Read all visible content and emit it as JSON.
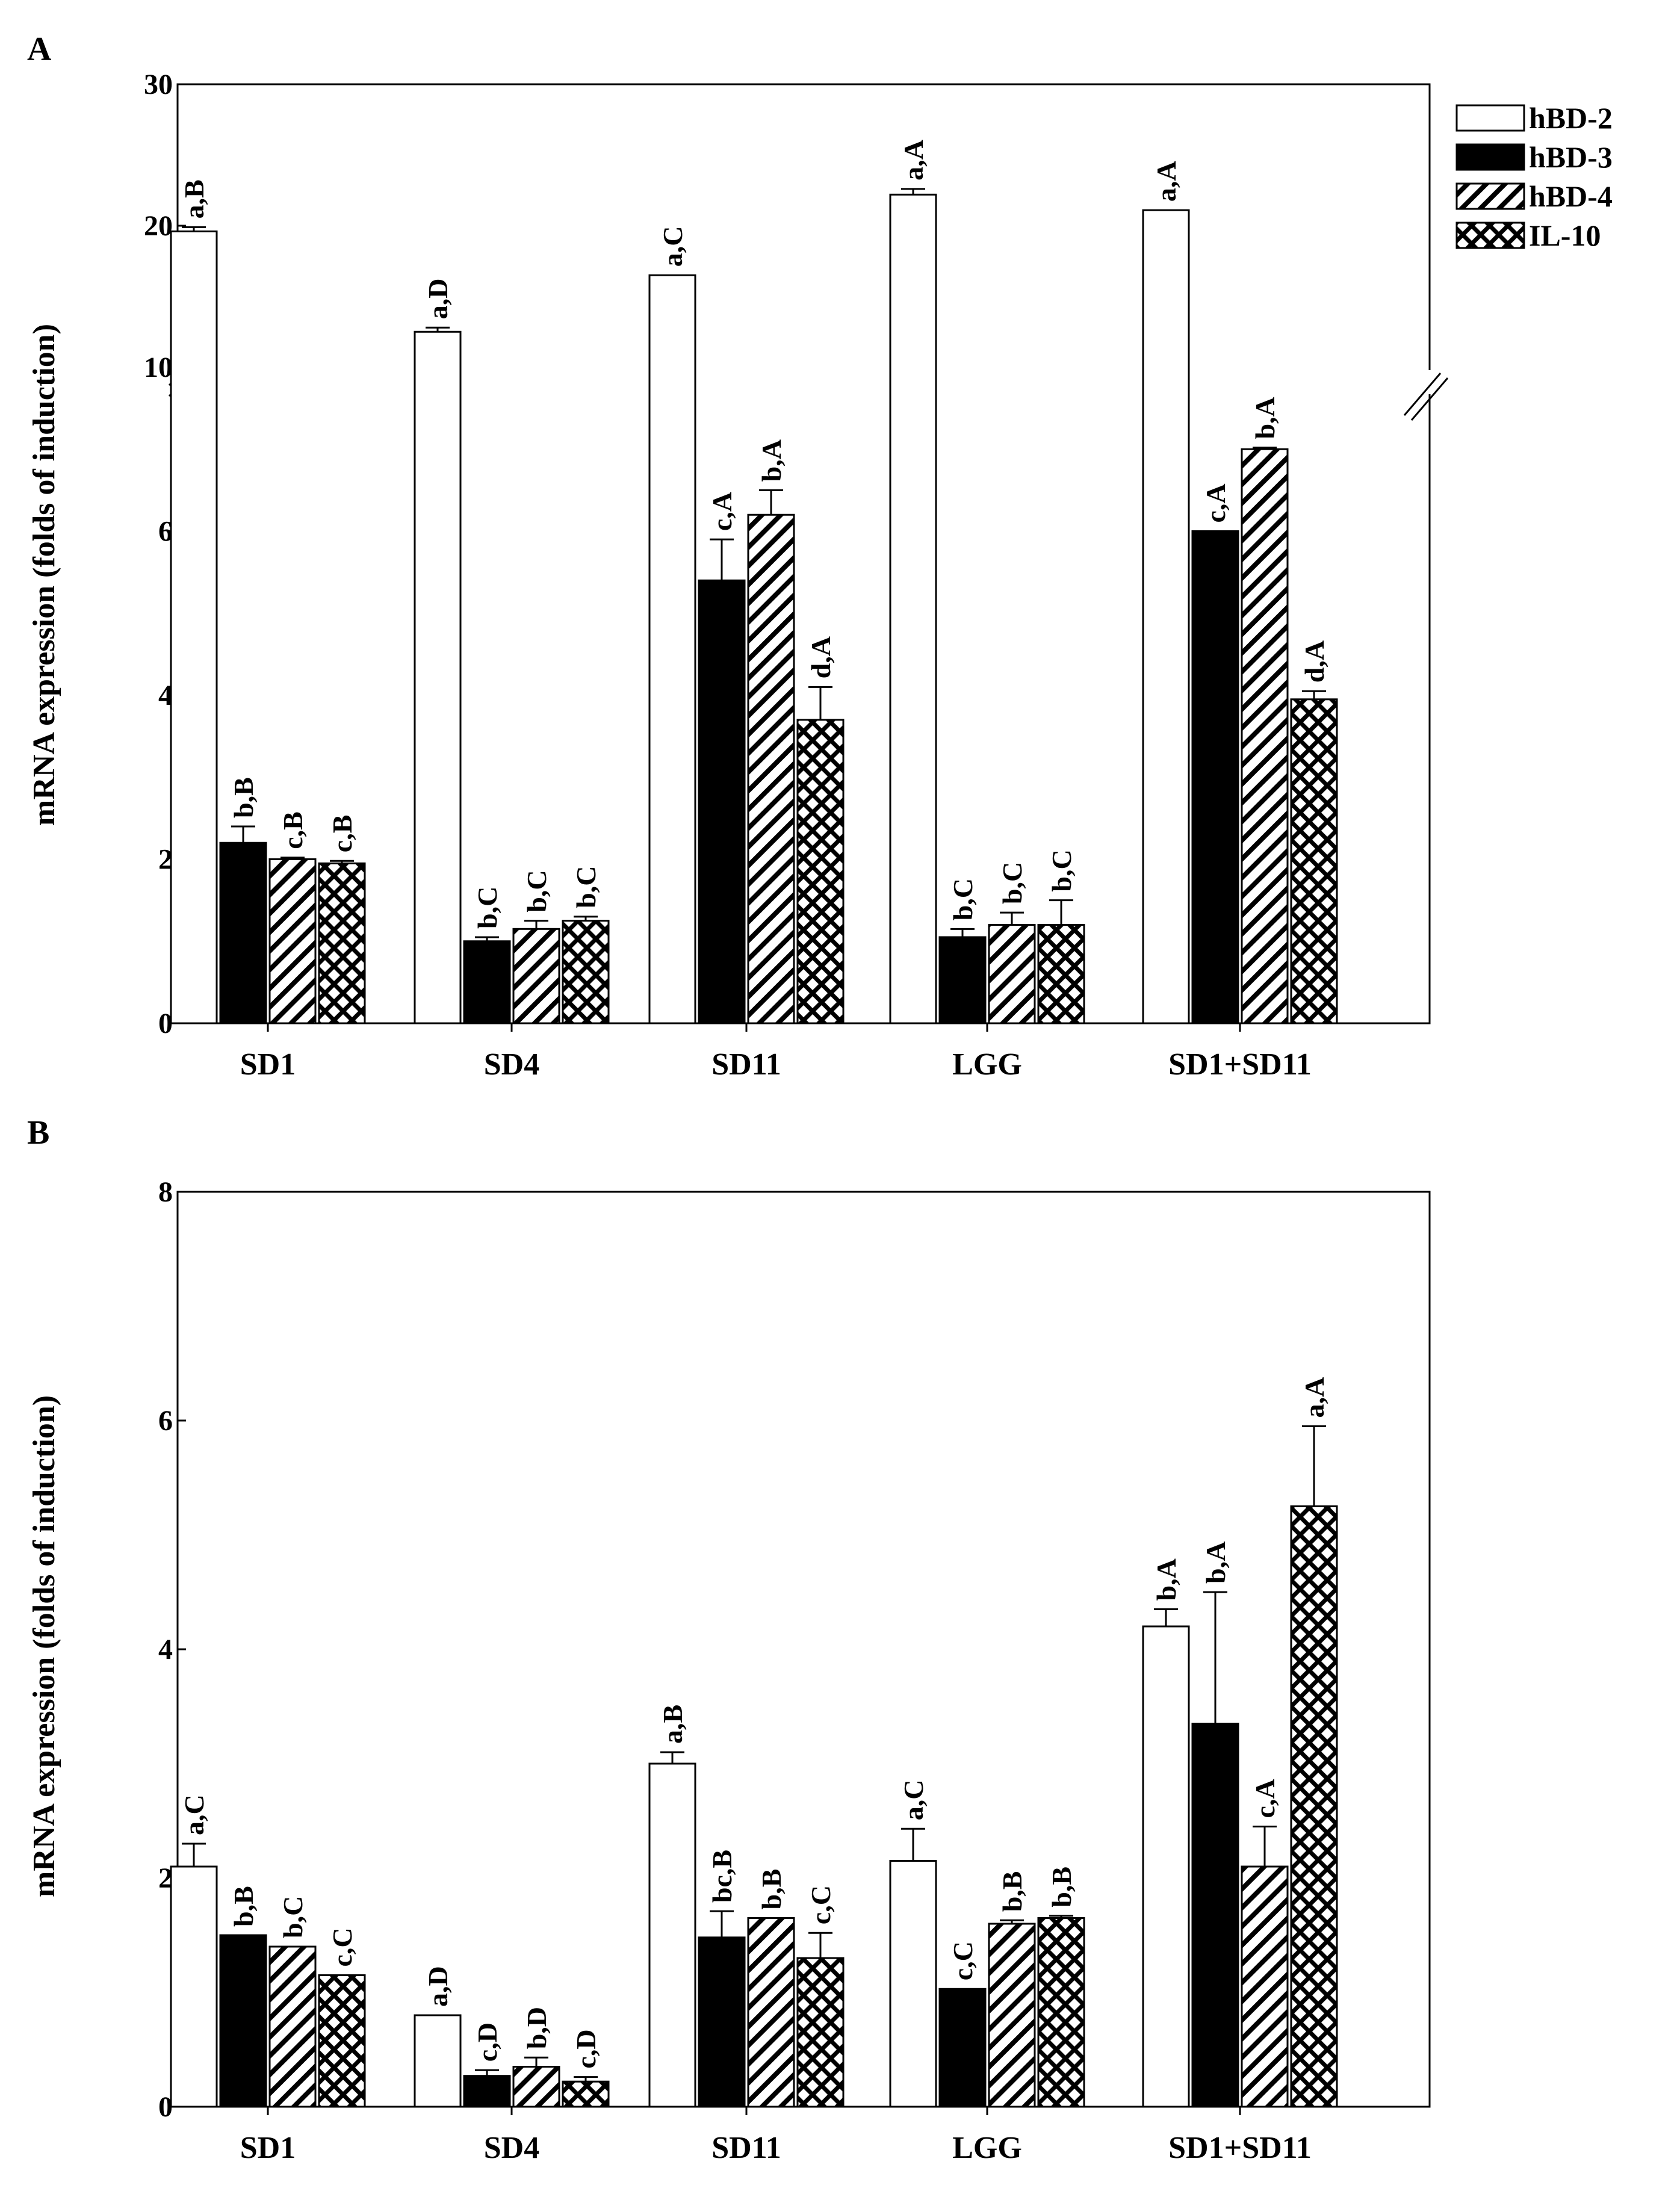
{
  "chart_data": [
    {
      "panel": "A",
      "type": "bar",
      "ylabel": "mRNA expression (folds of induction)",
      "categories": [
        "SD1",
        "SD4",
        "SD11",
        "LGG",
        "SD1+SD11"
      ],
      "y_ticks": [
        "0",
        "2",
        "4",
        "6",
        "10",
        "20",
        "30"
      ],
      "broken_axis": {
        "lower_range": [
          0,
          8
        ],
        "upper_range": [
          10,
          30
        ]
      },
      "legend_position": "top-right",
      "series": [
        {
          "name": "hBD-2",
          "values": [
            19.6,
            12.5,
            16.5,
            22.2,
            21.1
          ],
          "errors": [
            0.3,
            0.3,
            0,
            0.4,
            0
          ],
          "labels": [
            "a,B",
            "a,D",
            "a,C",
            "a,A",
            "a,A"
          ]
        },
        {
          "name": "hBD-3",
          "values": [
            2.2,
            1.0,
            5.4,
            1.05,
            6.0
          ],
          "errors": [
            0.2,
            0.05,
            0.5,
            0.1,
            0
          ],
          "labels": [
            "b,B",
            "b,C",
            "c,A",
            "b,C",
            "c,A"
          ]
        },
        {
          "name": "hBD-4",
          "values": [
            2.0,
            1.15,
            6.2,
            1.2,
            7.0
          ],
          "errors": [
            0.02,
            0.1,
            0.3,
            0.15,
            0.02
          ],
          "labels": [
            "c,B",
            "b,C",
            "b,A",
            "b,C",
            "b,A"
          ]
        },
        {
          "name": "IL-10",
          "values": [
            1.95,
            1.25,
            3.7,
            1.2,
            3.95
          ],
          "errors": [
            0.03,
            0.05,
            0.4,
            0.3,
            0.1
          ],
          "labels": [
            "c,B",
            "b,C",
            "d,A",
            "b,C",
            "d,A"
          ]
        }
      ]
    },
    {
      "panel": "B",
      "type": "bar",
      "ylabel": "mRNA expression (folds of induction)",
      "categories": [
        "SD1",
        "SD4",
        "SD11",
        "LGG",
        "SD1+SD11"
      ],
      "y_ticks": [
        "0",
        "2",
        "4",
        "6",
        "8"
      ],
      "ylim": [
        0,
        8
      ],
      "series": [
        {
          "name": "hBD-2",
          "values": [
            2.1,
            0.8,
            3.0,
            2.15,
            4.2
          ],
          "errors": [
            0.2,
            0,
            0.1,
            0.28,
            0.15
          ],
          "labels": [
            "a,C",
            "a,D",
            "a,B",
            "a,C",
            "b,A"
          ]
        },
        {
          "name": "hBD-3",
          "values": [
            1.5,
            0.27,
            1.48,
            1.03,
            3.35
          ],
          "errors": [
            0,
            0.05,
            0.23,
            0,
            1.15
          ],
          "labels": [
            "b,B",
            "c,D",
            "bc,B",
            "c,C",
            "b,A"
          ]
        },
        {
          "name": "hBD-4",
          "values": [
            1.4,
            0.35,
            1.65,
            1.6,
            2.1
          ],
          "errors": [
            0,
            0.08,
            0,
            0.03,
            0.35
          ],
          "labels": [
            "b,C",
            "b,D",
            "b,B",
            "b,B",
            "c,A"
          ]
        },
        {
          "name": "IL-10",
          "values": [
            1.15,
            0.22,
            1.3,
            1.65,
            5.25
          ],
          "errors": [
            0,
            0.04,
            0.22,
            0.02,
            0.7
          ],
          "labels": [
            "c,C",
            "c,D",
            "c,C",
            "b,B",
            "a,A"
          ]
        }
      ]
    }
  ]
}
